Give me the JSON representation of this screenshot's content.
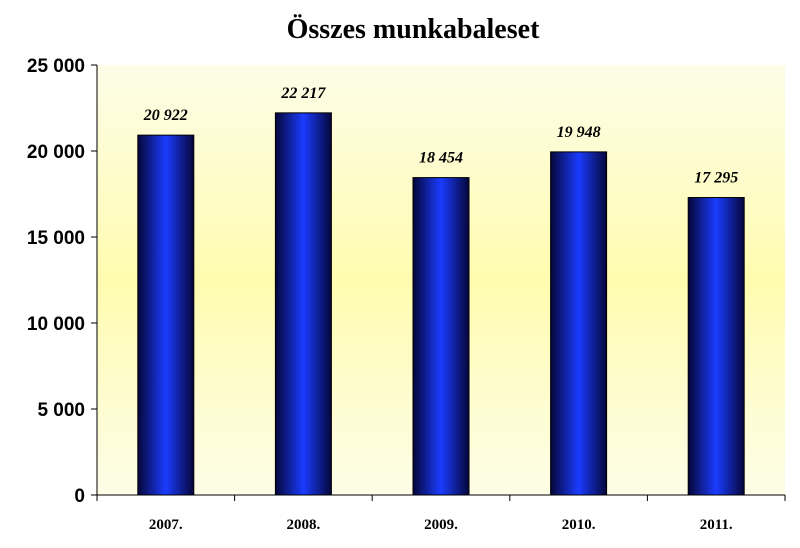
{
  "chart_data": {
    "type": "bar",
    "title": "Összes munkabaleset",
    "xlabel": "",
    "ylabel": "",
    "categories": [
      "2007.",
      "2008.",
      "2009.",
      "2010.",
      "2011."
    ],
    "values": [
      20922,
      22217,
      18454,
      19948,
      17295
    ],
    "data_labels": [
      "20 922",
      "22 217",
      "18 454",
      "19 948",
      "17 295"
    ],
    "ylim": [
      0,
      25000
    ],
    "yticks": [
      0,
      5000,
      10000,
      15000,
      20000,
      25000
    ],
    "ytick_labels": [
      "0",
      "5 000",
      "10 000",
      "15 000",
      "20 000",
      "25 000"
    ],
    "grid": false,
    "legend": "none",
    "colors": {
      "bar_center": "#1a3cff",
      "bar_edge": "#05063a",
      "plot_bg_center": "#fffcb0",
      "plot_bg_edge": "#fdfde8"
    }
  }
}
